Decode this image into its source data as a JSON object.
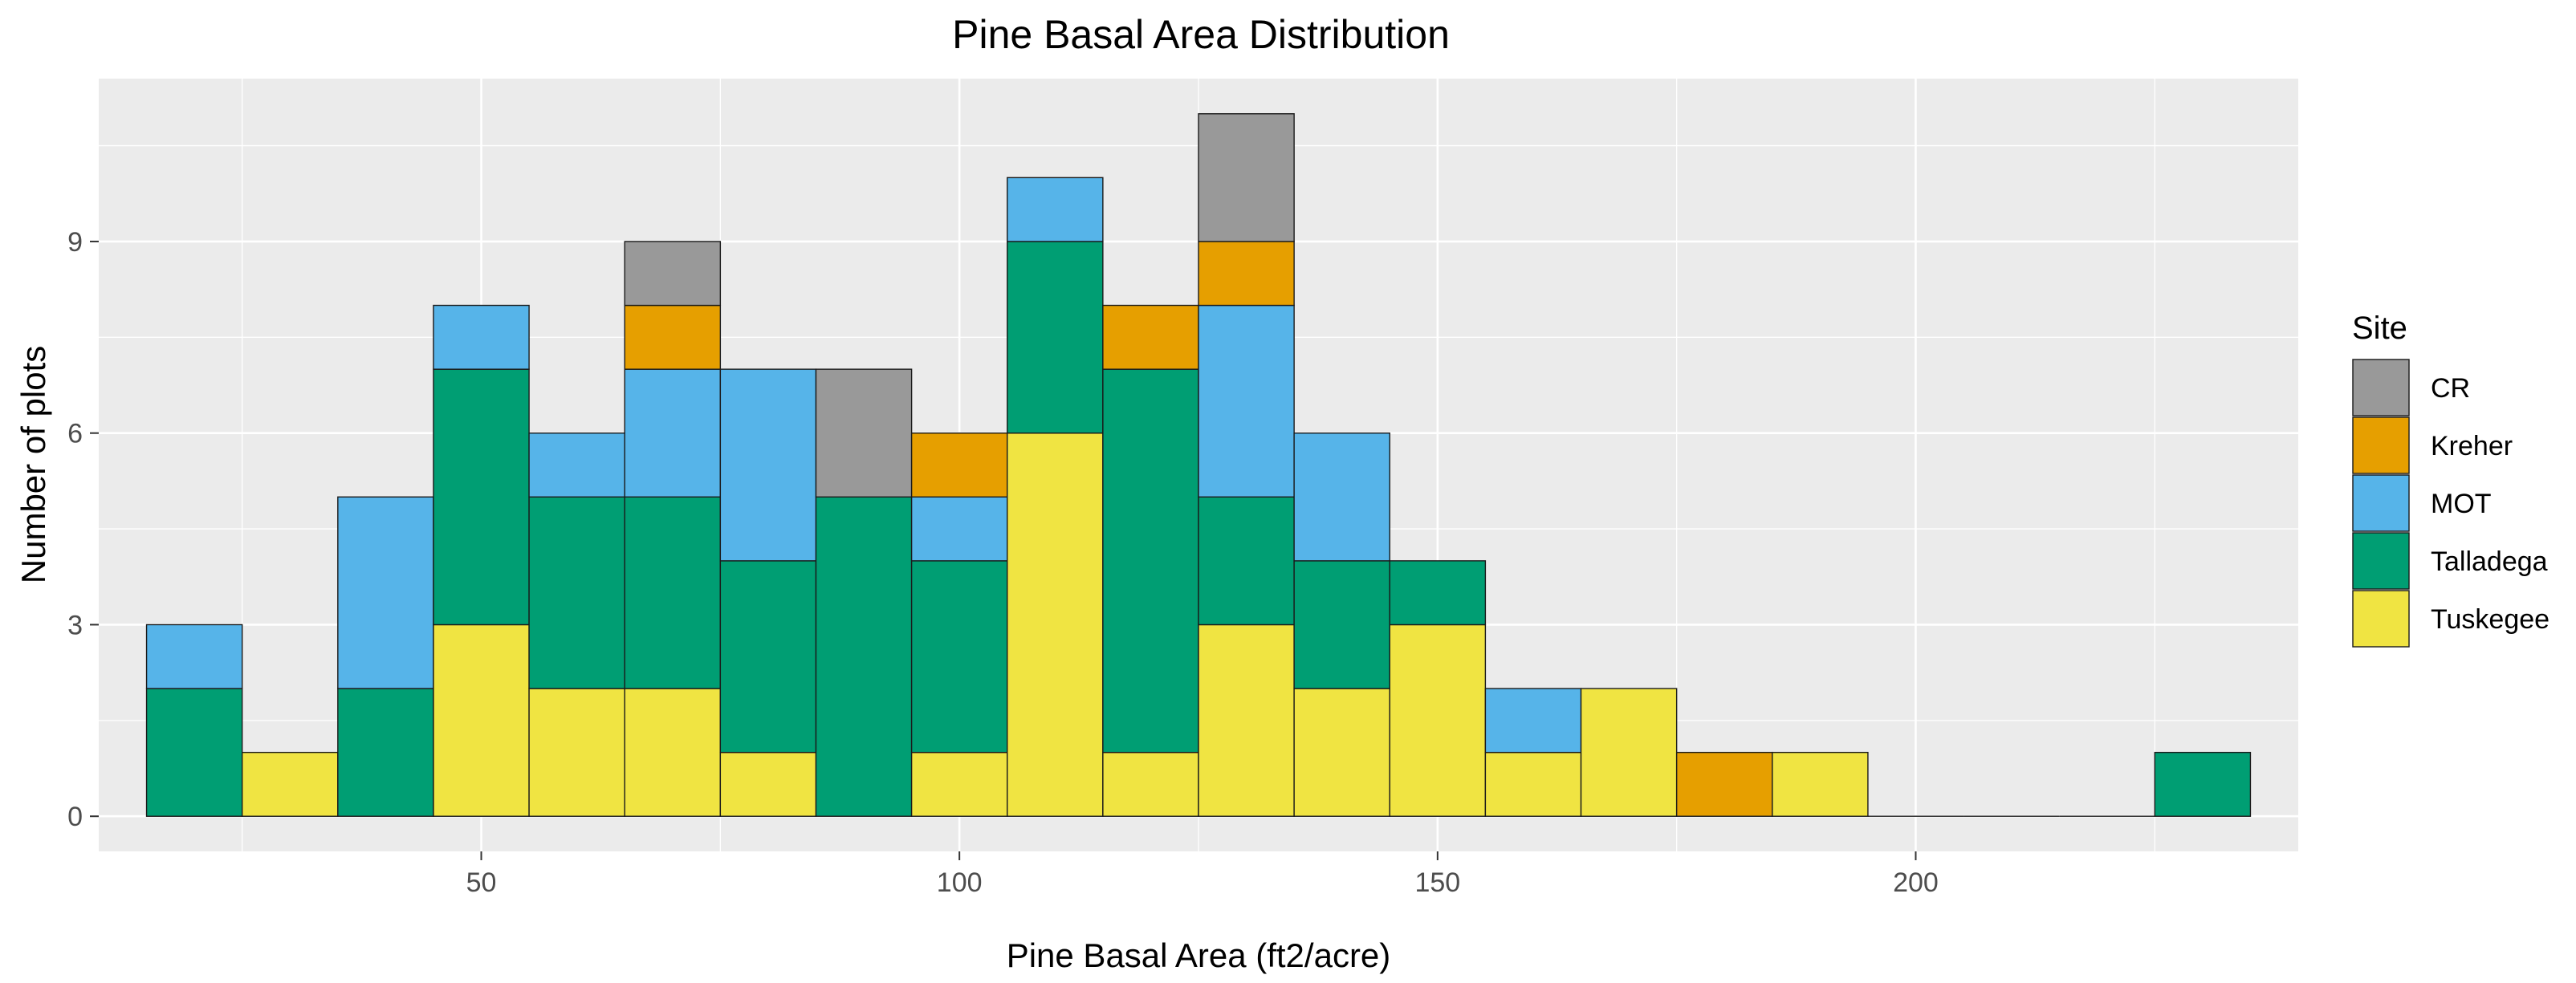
{
  "chart_data": {
    "type": "bar",
    "subtype": "stacked-histogram",
    "title": "Pine Basal Area Distribution",
    "xlabel": "Pine Basal Area (ft2/acre)",
    "ylabel": "Number of plots",
    "xlim": [
      10,
      240
    ],
    "ylim": [
      -0.55,
      11.55
    ],
    "x_ticks": [
      50,
      100,
      150,
      200
    ],
    "y_ticks": [
      0,
      3,
      6,
      9
    ],
    "bin_width": 10,
    "grid": true,
    "legend": {
      "title": "Site",
      "position": "right",
      "order": [
        "CR",
        "Kreher",
        "MOT",
        "Talladega",
        "Tuskegee"
      ]
    },
    "stack_order": [
      "Tuskegee",
      "Talladega",
      "MOT",
      "Kreher",
      "CR"
    ],
    "colors": {
      "CR": "#999999",
      "Kreher": "#E69F00",
      "MOT": "#56B4E9",
      "Talladega": "#009E73",
      "Tuskegee": "#F0E442"
    },
    "bin_centers": [
      20,
      30,
      40,
      50,
      60,
      70,
      80,
      90,
      100,
      110,
      120,
      130,
      140,
      150,
      160,
      170,
      180,
      190,
      200,
      210,
      220,
      230
    ],
    "series": [
      {
        "name": "CR",
        "values": [
          0,
          0,
          0,
          0,
          0,
          1,
          0,
          2,
          0,
          0,
          0,
          2,
          0,
          0,
          0,
          0,
          0,
          0,
          0,
          0,
          0,
          0
        ]
      },
      {
        "name": "Kreher",
        "values": [
          0,
          0,
          0,
          0,
          0,
          1,
          0,
          0,
          1,
          0,
          1,
          1,
          0,
          0,
          0,
          0,
          1,
          0,
          0,
          0,
          0,
          0
        ]
      },
      {
        "name": "MOT",
        "values": [
          1,
          0,
          3,
          1,
          1,
          2,
          3,
          0,
          1,
          1,
          0,
          3,
          2,
          0,
          1,
          0,
          0,
          0,
          0,
          0,
          0,
          0
        ]
      },
      {
        "name": "Talladega",
        "values": [
          2,
          0,
          2,
          4,
          3,
          3,
          3,
          5,
          3,
          3,
          6,
          2,
          2,
          1,
          0,
          0,
          0,
          0,
          0,
          0,
          0,
          1
        ]
      },
      {
        "name": "Tuskegee",
        "values": [
          0,
          1,
          0,
          3,
          2,
          2,
          1,
          0,
          1,
          6,
          1,
          3,
          2,
          3,
          1,
          2,
          0,
          1,
          0,
          0,
          0,
          0
        ]
      }
    ],
    "totals": [
      3,
      1,
      5,
      8,
      6,
      9,
      7,
      7,
      6,
      10,
      8,
      11,
      6,
      4,
      2,
      2,
      1,
      1,
      0,
      0,
      0,
      1
    ]
  }
}
